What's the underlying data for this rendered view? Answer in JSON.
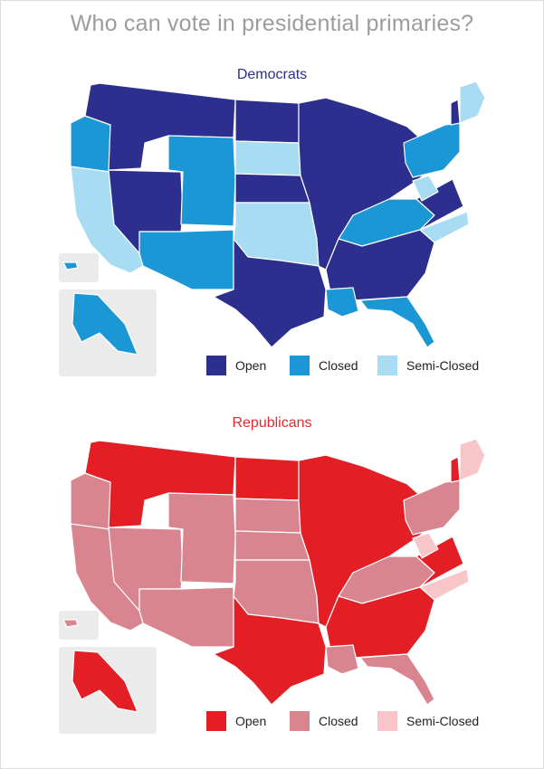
{
  "title": "Who can vote in presidential primaries?",
  "democrats": {
    "heading": "Democrats",
    "colors": {
      "open": "#2c2f8d",
      "closed": "#1c97d6",
      "semi_closed": "#a7dcf2"
    },
    "legend": [
      {
        "key": "open",
        "label": "Open"
      },
      {
        "key": "closed",
        "label": "Closed"
      },
      {
        "key": "semi_closed",
        "label": "Semi-Closed"
      }
    ]
  },
  "republicans": {
    "heading": "Republicans",
    "colors": {
      "open": "#e31e24",
      "closed": "#d9858f",
      "semi_closed": "#f8c6c8"
    },
    "legend": [
      {
        "key": "open",
        "label": "Open"
      },
      {
        "key": "closed",
        "label": "Closed"
      },
      {
        "key": "semi_closed",
        "label": "Semi-Closed"
      }
    ]
  },
  "map_layers": [
    {
      "name": "west-coast",
      "dem": "semi_closed",
      "rep": "closed"
    },
    {
      "name": "oregon",
      "dem": "closed",
      "rep": "closed"
    },
    {
      "name": "nevada-utah",
      "dem": "open",
      "rep": "closed"
    },
    {
      "name": "idaho-montana",
      "dem": "open",
      "rep": "open"
    },
    {
      "name": "wyoming-colorado",
      "dem": "closed",
      "rep": "closed"
    },
    {
      "name": "arizona-newmexico",
      "dem": "closed",
      "rep": "closed"
    },
    {
      "name": "dakotas-north",
      "dem": "open",
      "rep": "open"
    },
    {
      "name": "south-dakota",
      "dem": "semi_closed",
      "rep": "closed"
    },
    {
      "name": "nebraska",
      "dem": "open",
      "rep": "closed"
    },
    {
      "name": "kansas-oklahoma",
      "dem": "semi_closed",
      "rep": "closed"
    },
    {
      "name": "texas",
      "dem": "open",
      "rep": "open"
    },
    {
      "name": "midwest",
      "dem": "open",
      "rep": "open"
    },
    {
      "name": "kentucky-tennessee",
      "dem": "closed",
      "rep": "closed"
    },
    {
      "name": "southeast",
      "dem": "open",
      "rep": "open"
    },
    {
      "name": "louisiana",
      "dem": "closed",
      "rep": "closed"
    },
    {
      "name": "florida",
      "dem": "closed",
      "rep": "closed"
    },
    {
      "name": "north-carolina",
      "dem": "semi_closed",
      "rep": "semi_closed"
    },
    {
      "name": "virginia",
      "dem": "open",
      "rep": "open"
    },
    {
      "name": "west-virginia",
      "dem": "semi_closed",
      "rep": "semi_closed"
    },
    {
      "name": "pennsylvania-ny",
      "dem": "closed",
      "rep": "closed"
    },
    {
      "name": "new-england",
      "dem": "semi_closed",
      "rep": "semi_closed"
    },
    {
      "name": "vermont",
      "dem": "open",
      "rep": "open"
    },
    {
      "name": "alaska",
      "dem": "closed",
      "rep": "open"
    },
    {
      "name": "hawaii",
      "dem": "closed",
      "rep": "closed"
    }
  ]
}
